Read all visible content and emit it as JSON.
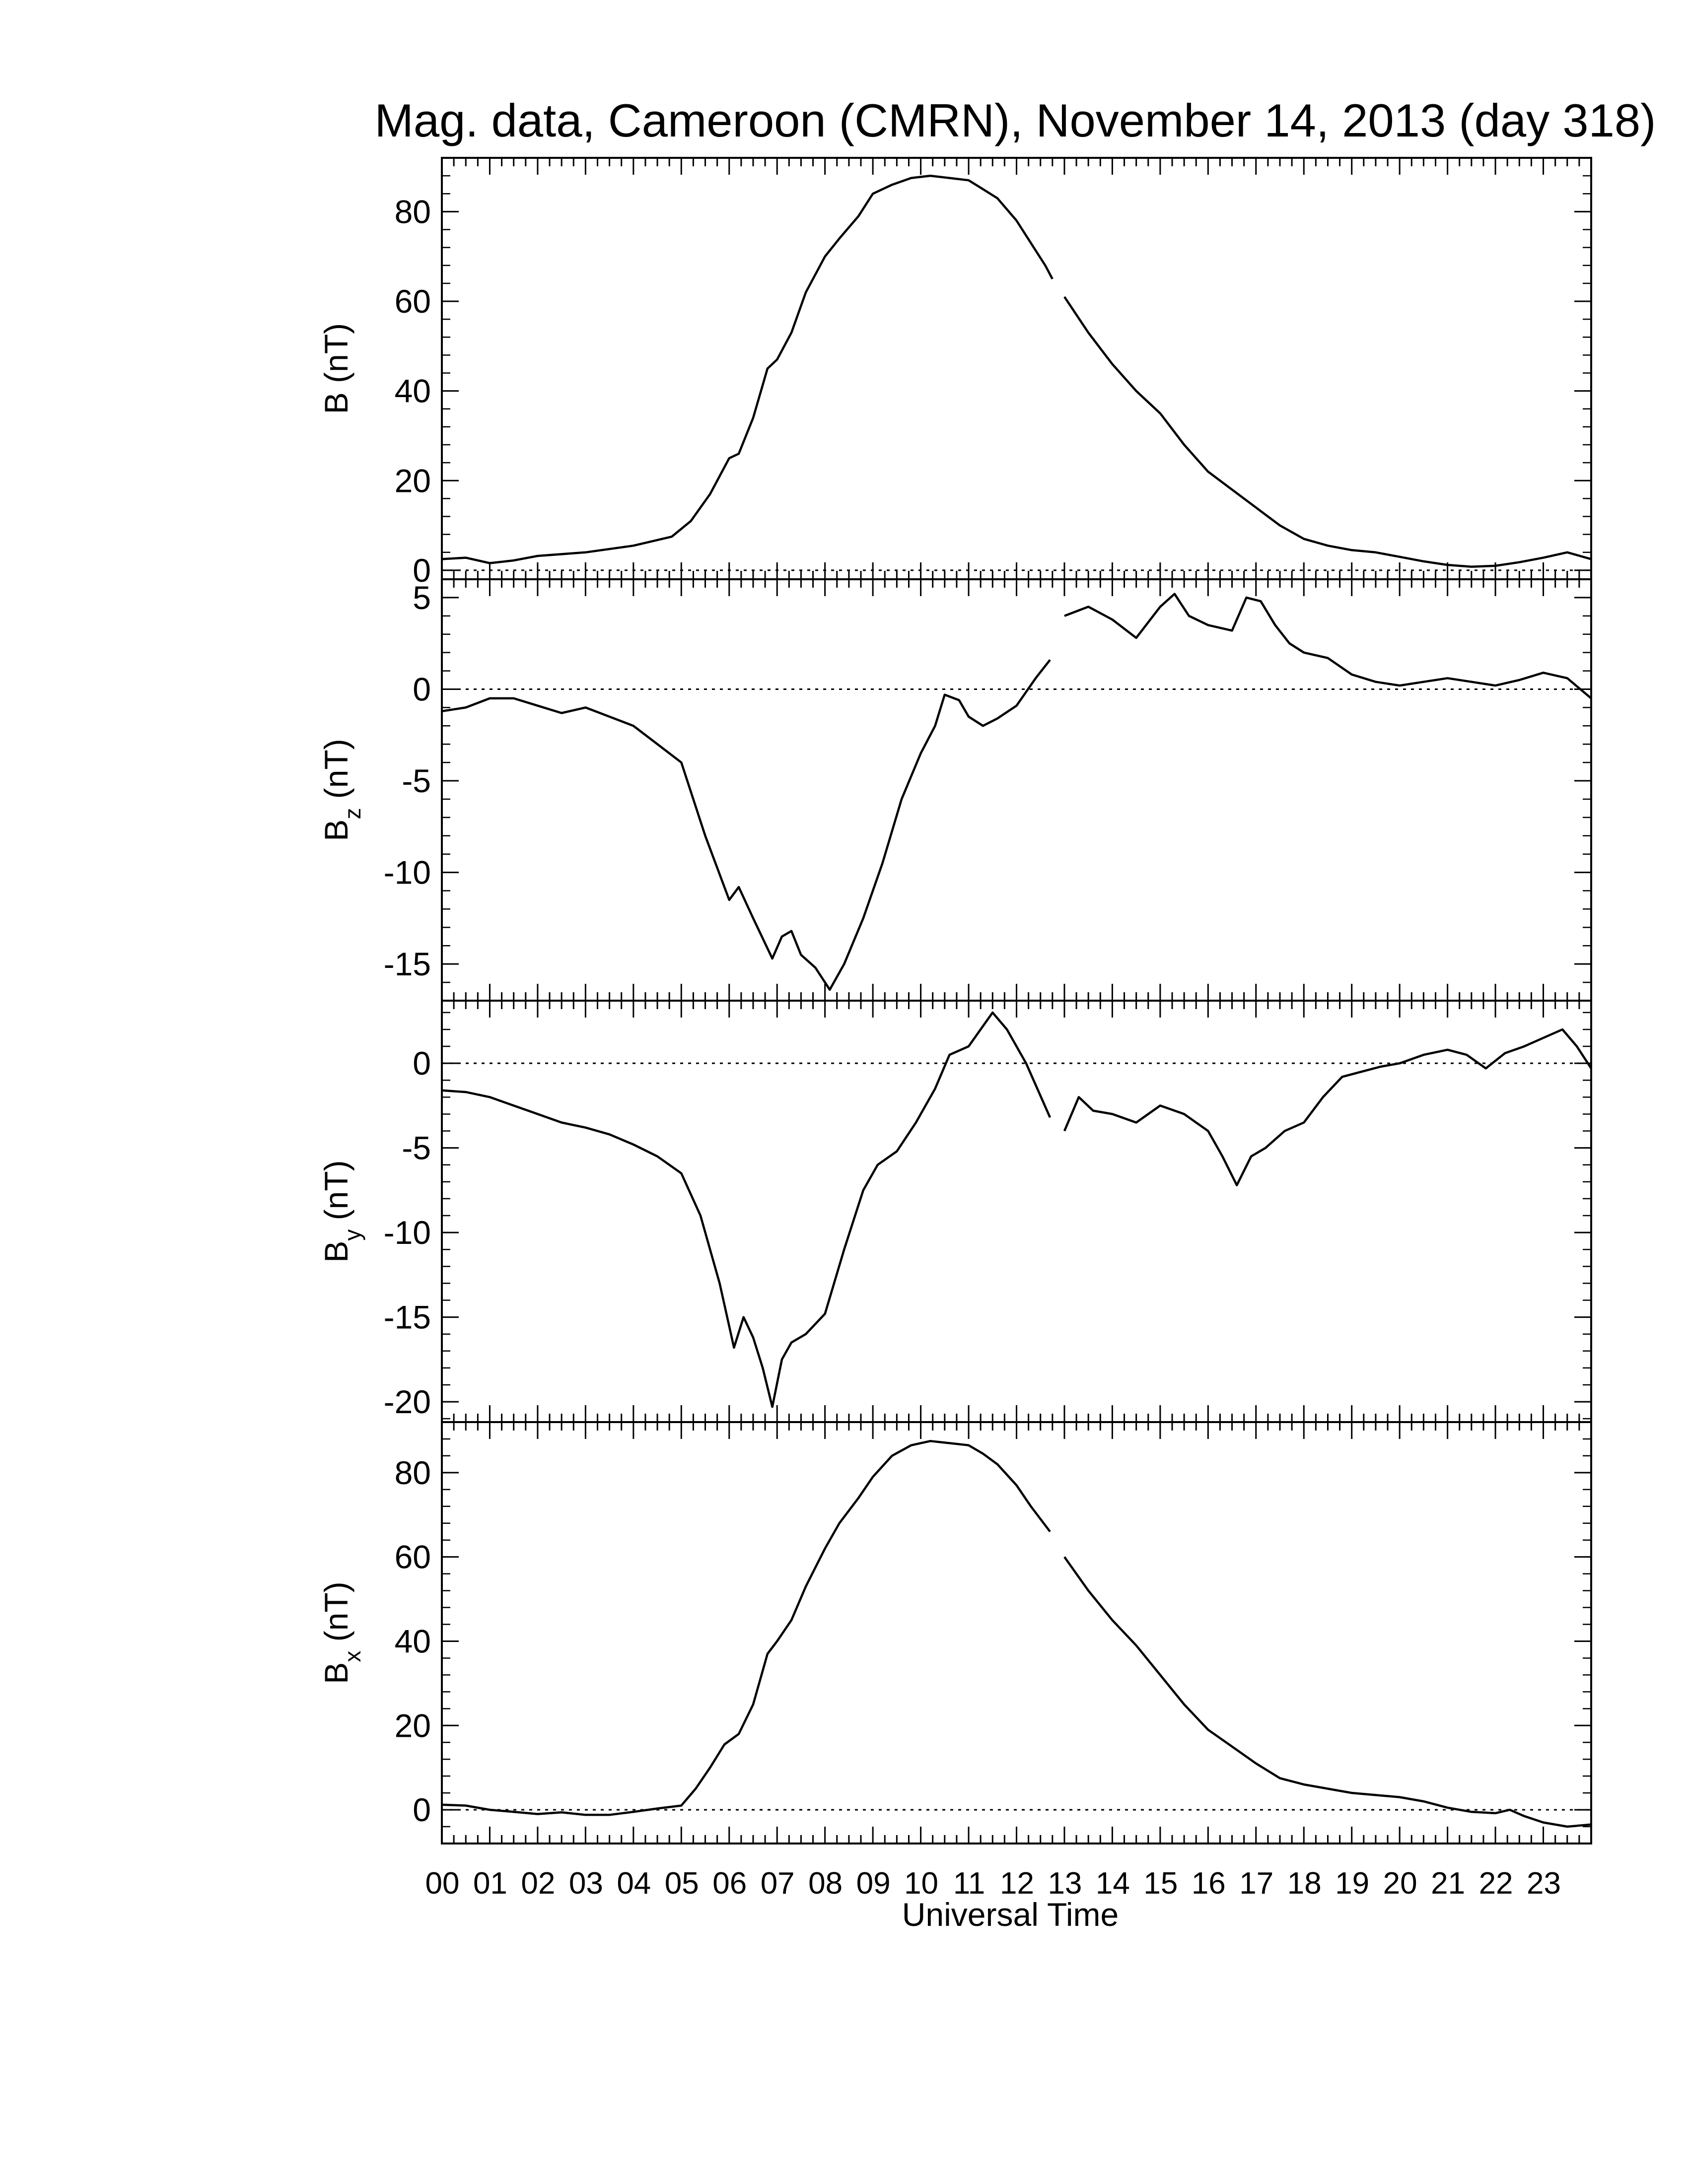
{
  "figure": {
    "title": "Mag. data, Cameroon (CMRN), November 14, 2013 (day 318)",
    "xlabel": "Universal Time",
    "colors": {
      "line": "#000000",
      "zero_line": "#000000",
      "background": "#ffffff"
    }
  },
  "chart_data": [
    {
      "type": "line",
      "panel": "B",
      "ylabel": {
        "base": "B",
        "sub": "",
        "unit": " (nT)"
      },
      "ylim": [
        -2,
        92
      ],
      "yticks": [
        0,
        20,
        40,
        60,
        80
      ],
      "zero_line": true,
      "x": [
        0,
        0.5,
        1,
        1.5,
        2,
        3,
        4,
        4.8,
        5.2,
        5.6,
        6,
        6.2,
        6.5,
        6.8,
        7,
        7.3,
        7.6,
        8,
        8.3,
        8.7,
        9,
        9.4,
        9.8,
        10.2,
        10.6,
        11,
        11.3,
        11.6,
        12,
        12.3,
        12.6,
        12.75
      ],
      "y": [
        2.5,
        2.8,
        1.6,
        2.2,
        3.2,
        4.0,
        5.5,
        7.5,
        11,
        17,
        25,
        26,
        34,
        45,
        47,
        53,
        62,
        70,
        74,
        79,
        84,
        86,
        87.5,
        88,
        87.5,
        87,
        85,
        83,
        78,
        73,
        68,
        65
      ],
      "x2": [
        13,
        13.5,
        14,
        14.5,
        15,
        15.5,
        16,
        16.5,
        17,
        17.5,
        18,
        18.5,
        19,
        19.5,
        20,
        20.5,
        21,
        21.5,
        22,
        22.5,
        23,
        23.5,
        24
      ],
      "y2": [
        61,
        53,
        46,
        40,
        35,
        28,
        22,
        18,
        14,
        10,
        7,
        5.5,
        4.5,
        4,
        3,
        2,
        1.2,
        0.8,
        1.0,
        1.8,
        2.8,
        4.0,
        2.5
      ]
    },
    {
      "type": "line",
      "panel": "Bz",
      "ylabel": {
        "base": "B",
        "sub": "z",
        "unit": " (nT)"
      },
      "ylim": [
        -17,
        6
      ],
      "yticks": [
        -15,
        -10,
        -5,
        0,
        5
      ],
      "zero_line": true,
      "x": [
        0,
        0.5,
        1,
        1.5,
        2,
        2.5,
        3,
        3.5,
        4,
        4.5,
        5,
        5.5,
        6,
        6.2,
        6.5,
        6.9,
        7.1,
        7.3,
        7.5,
        7.8,
        8.1,
        8.4,
        8.8,
        9.2,
        9.6,
        10,
        10.3,
        10.5,
        10.8,
        11,
        11.3,
        11.6,
        12,
        12.4,
        12.7
      ],
      "y": [
        -1.2,
        -1.0,
        -0.5,
        -0.5,
        -0.9,
        -1.3,
        -1.0,
        -1.5,
        -2.0,
        -3.0,
        -4.0,
        -8.0,
        -11.5,
        -10.8,
        -12.5,
        -14.7,
        -13.5,
        -13.2,
        -14.5,
        -15.2,
        -16.4,
        -15.0,
        -12.5,
        -9.5,
        -6.0,
        -3.5,
        -2.0,
        -0.3,
        -0.6,
        -1.5,
        -2.0,
        -1.6,
        -0.9,
        0.6,
        1.6
      ],
      "x2": [
        13,
        13.5,
        14,
        14.5,
        15,
        15.3,
        15.6,
        16,
        16.5,
        16.8,
        17.1,
        17.4,
        17.7,
        18,
        18.5,
        19,
        19.5,
        20,
        20.5,
        21,
        21.5,
        22,
        22.5,
        23,
        23.5,
        24
      ],
      "y2": [
        4.0,
        4.5,
        3.8,
        2.8,
        4.5,
        5.2,
        4.0,
        3.5,
        3.2,
        5.0,
        4.8,
        3.5,
        2.5,
        2.0,
        1.7,
        0.8,
        0.4,
        0.2,
        0.4,
        0.6,
        0.4,
        0.2,
        0.5,
        0.9,
        0.6,
        -0.5
      ]
    },
    {
      "type": "line",
      "panel": "By",
      "ylabel": {
        "base": "B",
        "sub": "y",
        "unit": " (nT)"
      },
      "ylim": [
        -21.2,
        3.7
      ],
      "yticks": [
        -20,
        -15,
        -10,
        -5,
        0
      ],
      "zero_line": true,
      "x": [
        0,
        0.5,
        1,
        1.5,
        2,
        2.5,
        3,
        3.5,
        4,
        4.5,
        5,
        5.4,
        5.8,
        6.1,
        6.3,
        6.5,
        6.7,
        6.9,
        7.1,
        7.3,
        7.6,
        8,
        8.4,
        8.8,
        9.1,
        9.5,
        9.9,
        10.3,
        10.6,
        11,
        11.2,
        11.5,
        11.8,
        12.2,
        12.7
      ],
      "y": [
        -1.6,
        -1.7,
        -2.0,
        -2.5,
        -3.0,
        -3.5,
        -3.8,
        -4.2,
        -4.8,
        -5.5,
        -6.5,
        -9.0,
        -13.0,
        -16.8,
        -15.0,
        -16.2,
        -18.0,
        -20.3,
        -17.5,
        -16.5,
        -16.0,
        -14.8,
        -11.0,
        -7.5,
        -6.0,
        -5.2,
        -3.5,
        -1.5,
        0.5,
        1.0,
        1.8,
        3.0,
        2.0,
        0,
        -3.2
      ],
      "x2": [
        13,
        13.3,
        13.6,
        14,
        14.5,
        15,
        15.5,
        16,
        16.3,
        16.6,
        16.9,
        17.2,
        17.6,
        18,
        18.4,
        18.8,
        19.2,
        19.6,
        20,
        20.5,
        21,
        21.4,
        21.8,
        22.2,
        22.6,
        23,
        23.4,
        23.7,
        24
      ],
      "y2": [
        -4.0,
        -2.0,
        -2.8,
        -3.0,
        -3.5,
        -2.5,
        -3.0,
        -4.0,
        -5.5,
        -7.2,
        -5.5,
        -5.0,
        -4.0,
        -3.5,
        -2.0,
        -0.8,
        -0.5,
        -0.2,
        0,
        0.5,
        0.8,
        0.5,
        -0.3,
        0.6,
        1.0,
        1.5,
        2.0,
        1.0,
        -0.3
      ]
    },
    {
      "type": "line",
      "panel": "Bx",
      "ylabel": {
        "base": "B",
        "sub": "x",
        "unit": " (nT)"
      },
      "ylim": [
        -8,
        92
      ],
      "yticks": [
        0,
        20,
        40,
        60,
        80
      ],
      "zero_line": true,
      "x": [
        0,
        0.5,
        1,
        1.5,
        2,
        2.5,
        3,
        3.5,
        4,
        4.5,
        5,
        5.3,
        5.6,
        5.9,
        6.2,
        6.5,
        6.8,
        7,
        7.3,
        7.6,
        8,
        8.3,
        8.7,
        9,
        9.4,
        9.8,
        10.2,
        10.6,
        11,
        11.3,
        11.6,
        12,
        12.3,
        12.7
      ],
      "y": [
        1.2,
        1.0,
        0.0,
        -0.5,
        -1.0,
        -0.6,
        -1.2,
        -1.2,
        -0.5,
        0.3,
        1.0,
        5.0,
        10.0,
        15.5,
        18.0,
        25.0,
        37.0,
        40.0,
        45.0,
        53.0,
        62.0,
        68.0,
        74.0,
        79.0,
        84.0,
        86.5,
        87.5,
        87.0,
        86.5,
        84.5,
        82.0,
        77.0,
        72.0,
        66.0
      ],
      "x2": [
        13,
        13.5,
        14,
        14.5,
        15,
        15.5,
        16,
        16.5,
        17,
        17.5,
        18,
        18.5,
        19,
        19.5,
        20,
        20.5,
        21,
        21.5,
        22,
        22.3,
        22.6,
        23,
        23.5,
        24
      ],
      "y2": [
        60,
        52,
        45,
        39,
        32,
        25,
        19,
        15,
        11,
        7.5,
        6,
        5,
        4,
        3.5,
        3,
        2,
        0.5,
        -0.5,
        -0.8,
        0,
        -1.5,
        -3.0,
        -4.0,
        -3.5
      ]
    }
  ],
  "xaxis": {
    "range": [
      0,
      24
    ],
    "ticks": [
      "00",
      "01",
      "02",
      "03",
      "04",
      "05",
      "06",
      "07",
      "08",
      "09",
      "10",
      "11",
      "12",
      "13",
      "14",
      "15",
      "16",
      "17",
      "18",
      "19",
      "20",
      "21",
      "22",
      "23"
    ]
  }
}
